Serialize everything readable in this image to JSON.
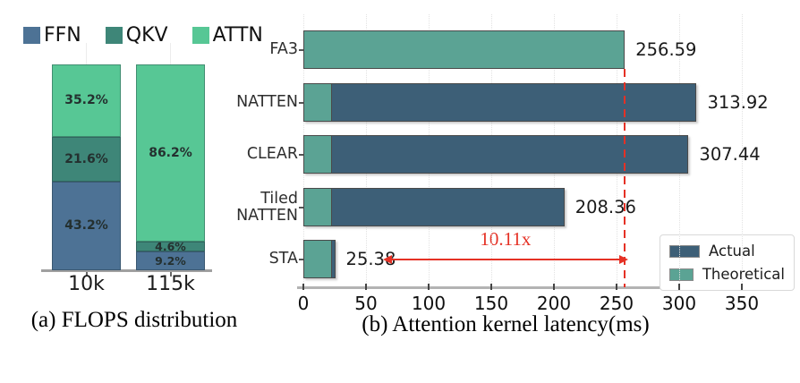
{
  "colors": {
    "ffn": "#4d7295",
    "qkv": "#3e8678",
    "attn": "#57c795",
    "actual": "#3d5f77",
    "theoretical": "#5ba394",
    "annotation_red": "#e53125"
  },
  "captions": {
    "a": "(a) FLOPS distribution",
    "b": "(b) Attention kernel latency(ms)"
  },
  "chart_data": [
    {
      "type": "bar",
      "subtype": "stacked-vertical-percent",
      "title": "(a) FLOPS distribution",
      "categories": [
        "10k",
        "115k"
      ],
      "legend": [
        "FFN",
        "QKV",
        "ATTN"
      ],
      "stack_order_top_to_bottom": [
        "ATTN",
        "QKV",
        "FFN"
      ],
      "series": [
        {
          "name": "FFN",
          "values": [
            43.2,
            9.2
          ]
        },
        {
          "name": "QKV",
          "values": [
            21.6,
            4.6
          ]
        },
        {
          "name": "ATTN",
          "values": [
            35.2,
            86.2
          ]
        }
      ],
      "unit": "%",
      "ylim": [
        0,
        100
      ],
      "grid": "faint vertical line per bar"
    },
    {
      "type": "bar",
      "subtype": "horizontal-overlay",
      "title": "(b) Attention kernel latency(ms)",
      "categories": [
        "FA3",
        "NATTEN",
        "CLEAR",
        "Tiled\nNATTEN",
        "STA"
      ],
      "series": [
        {
          "name": "Actual",
          "values": [
            null,
            313.92,
            307.44,
            208.36,
            25.38
          ]
        },
        {
          "name": "Theoretical",
          "values": [
            256.59,
            23,
            23,
            23,
            23
          ]
        }
      ],
      "value_labels": [
        "256.59",
        "313.92",
        "307.44",
        "208.36",
        "25.38"
      ],
      "x_ticks": [
        0,
        50,
        100,
        150,
        200,
        250,
        300,
        350
      ],
      "xlim": [
        0,
        362
      ],
      "legend": [
        "Actual",
        "Theoretical"
      ],
      "legend_position": "lower right",
      "annotation": {
        "text": "10.11x",
        "dashed_line_at": 256.59,
        "arrow_from": 25.38,
        "arrow_to": 256.59
      }
    }
  ]
}
